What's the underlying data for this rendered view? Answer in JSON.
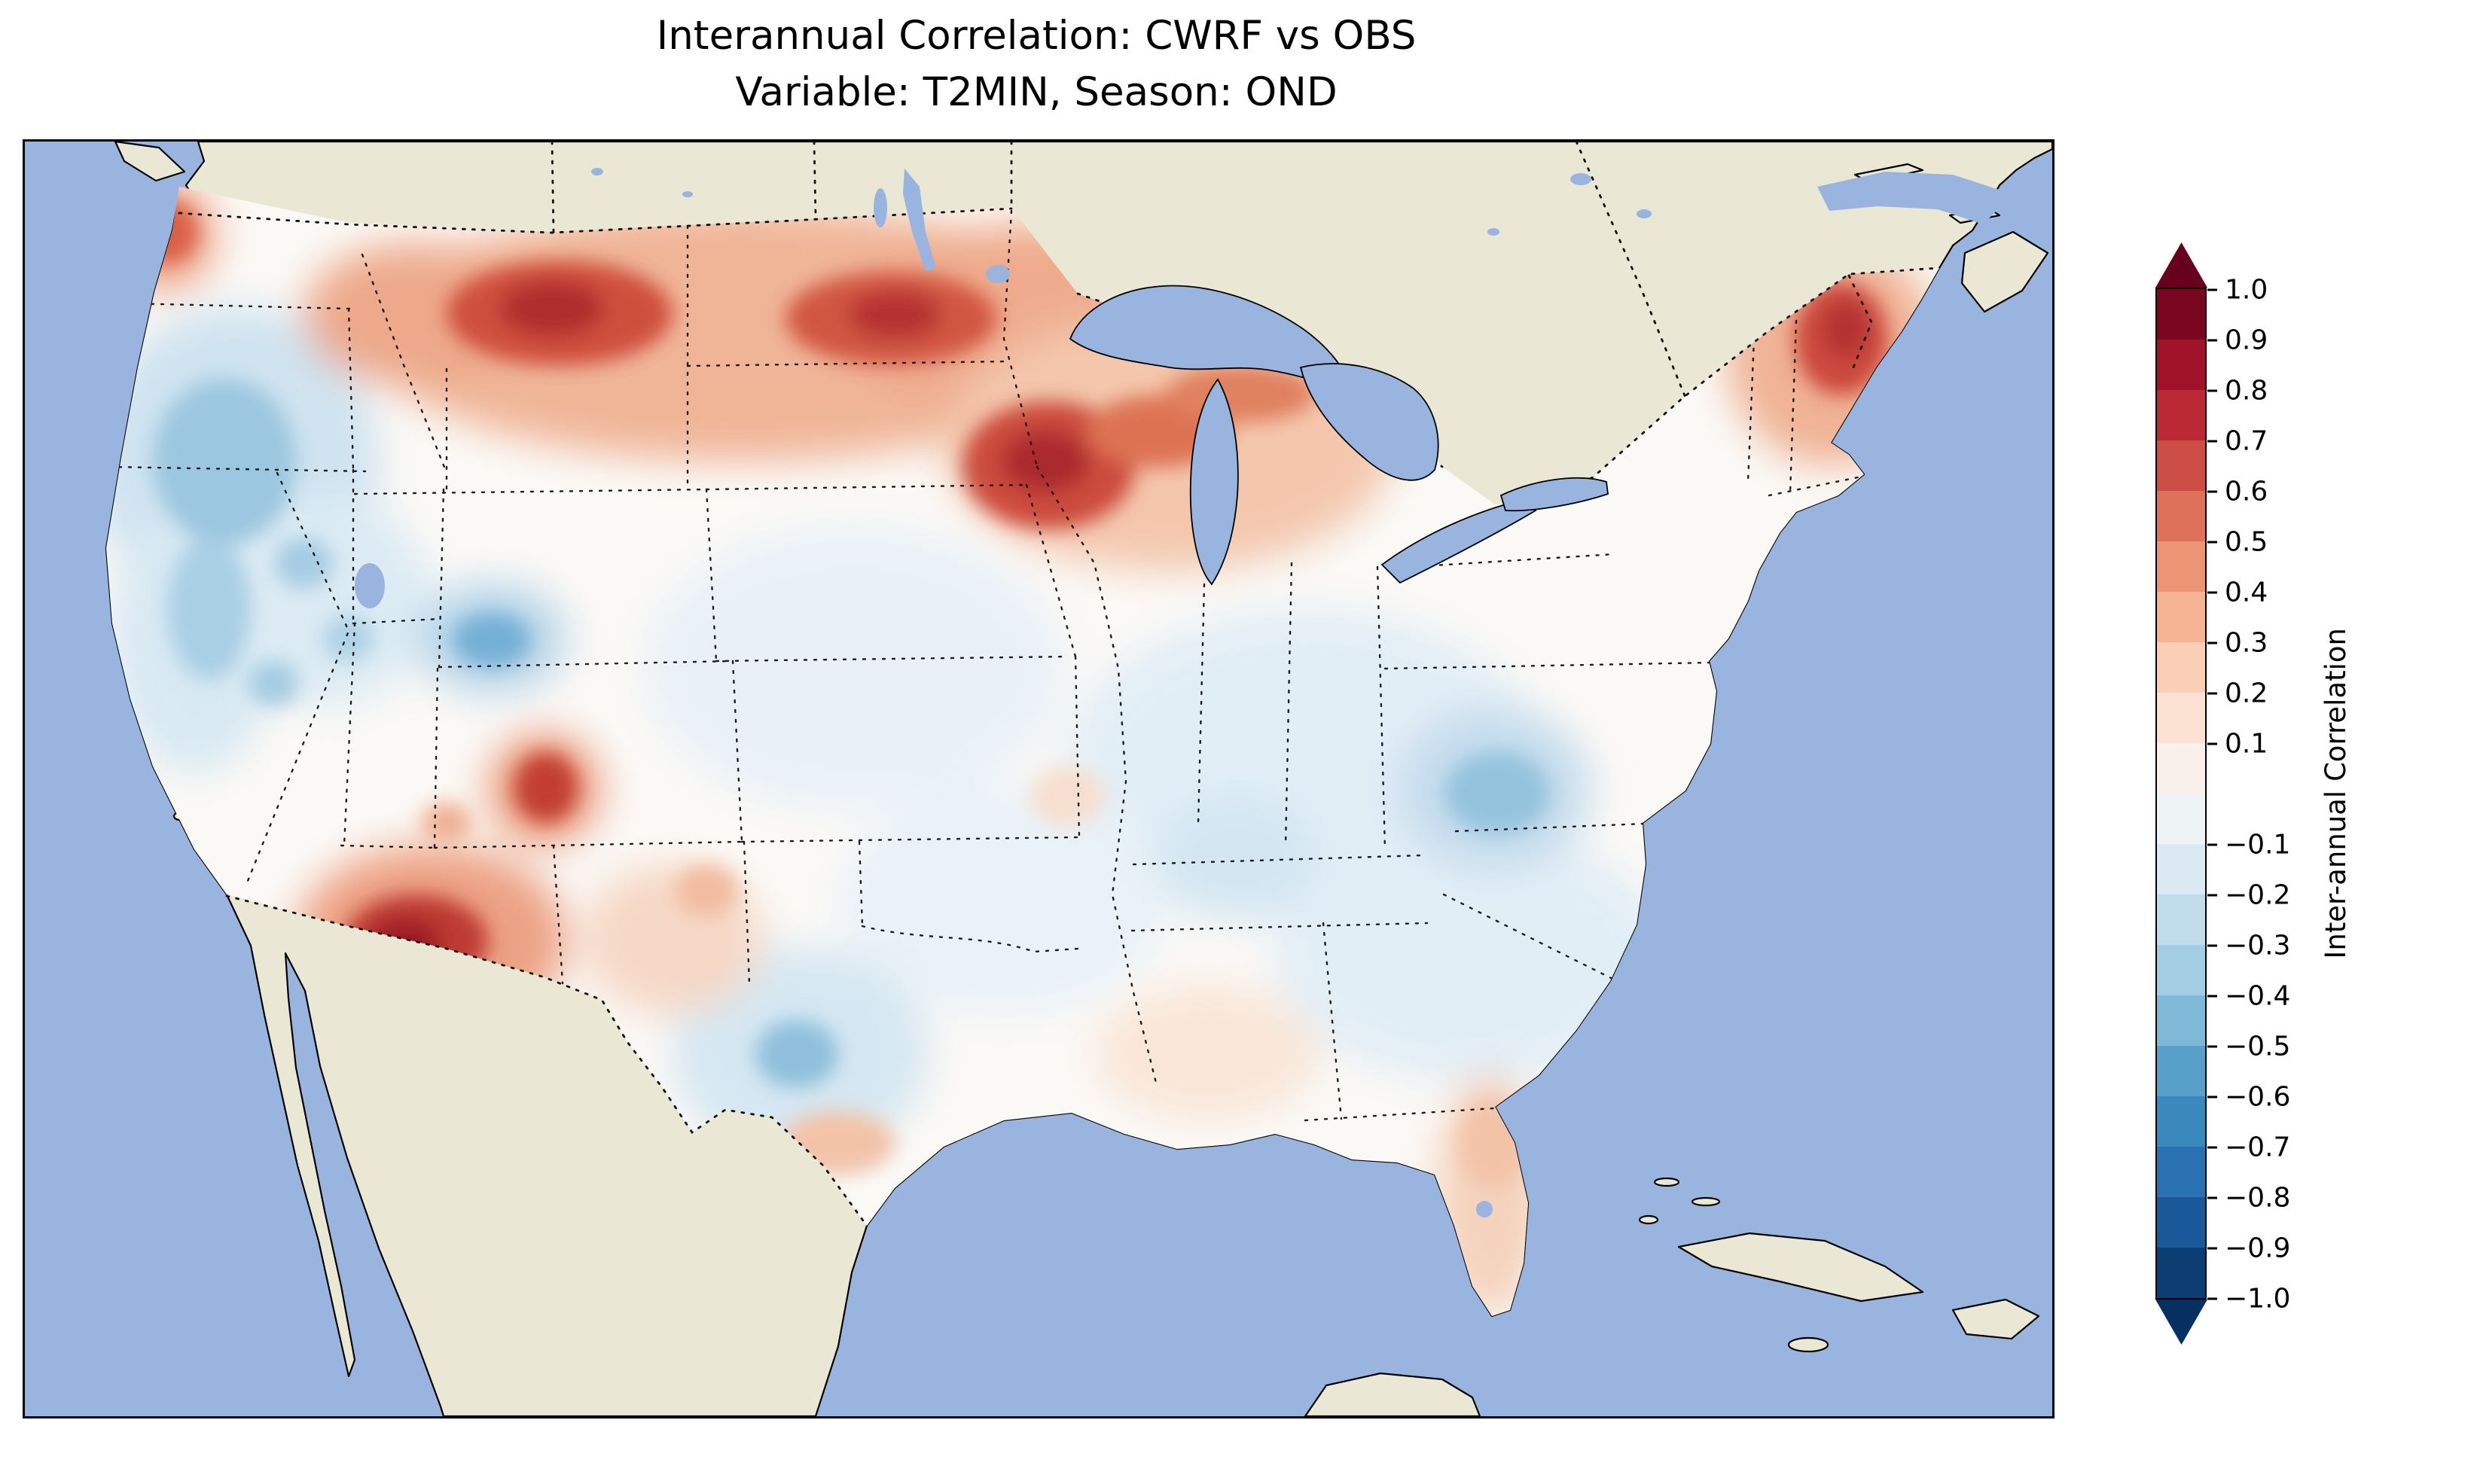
{
  "figure": {
    "title_line1": "Interannual Correlation: CWRF vs OBS",
    "title_line2": "Variable: T2MIN, Season: OND"
  },
  "map": {
    "ocean_color": "#98b4df",
    "land_color": "#eae8d4",
    "field_neutral_color": "#fbf9f6",
    "coastline_color": "#000000",
    "border_style": "dotted"
  },
  "colorbar": {
    "label": "Inter-annual Correlation",
    "extend_top_color": "#67001f",
    "extend_bottom_color": "#053061",
    "segment_colors_top_to_bottom": [
      "#7a0622",
      "#9f1228",
      "#bb2a34",
      "#cd4e45",
      "#de715a",
      "#ed9475",
      "#f6b393",
      "#fbceb6",
      "#fce2d3",
      "#f9f0eb",
      "#eef3f5",
      "#dbeaf2",
      "#c1ddec",
      "#a2cde3",
      "#7eb9d7",
      "#57a0ca",
      "#3b88bd",
      "#2a71b2",
      "#1a5999",
      "#0c3e74"
    ],
    "ticks": [
      {
        "value": 1.0,
        "label": "1.0"
      },
      {
        "value": 0.9,
        "label": "0.9"
      },
      {
        "value": 0.8,
        "label": "0.8"
      },
      {
        "value": 0.7,
        "label": "0.7"
      },
      {
        "value": 0.6,
        "label": "0.6"
      },
      {
        "value": 0.5,
        "label": "0.5"
      },
      {
        "value": 0.4,
        "label": "0.4"
      },
      {
        "value": 0.3,
        "label": "0.3"
      },
      {
        "value": 0.2,
        "label": "0.2"
      },
      {
        "value": 0.1,
        "label": "0.1"
      },
      {
        "value": -0.1,
        "label": "−0.1"
      },
      {
        "value": -0.2,
        "label": "−0.2"
      },
      {
        "value": -0.3,
        "label": "−0.3"
      },
      {
        "value": -0.4,
        "label": "−0.4"
      },
      {
        "value": -0.5,
        "label": "−0.5"
      },
      {
        "value": -0.6,
        "label": "−0.6"
      },
      {
        "value": -0.7,
        "label": "−0.7"
      },
      {
        "value": -0.8,
        "label": "−0.8"
      },
      {
        "value": -0.9,
        "label": "−0.9"
      },
      {
        "value": -1.0,
        "label": "−1.0"
      }
    ]
  },
  "chart_data": {
    "type": "heatmap",
    "subtype": "filled-contour geographic map",
    "title": "Interannual Correlation: CWRF vs OBS",
    "subtitle": "Variable: T2MIN, Season: OND",
    "comparison": "CWRF vs OBS",
    "variable": "T2MIN",
    "season": "OND",
    "region": "Continental United States (CONUS) with surrounding Canada, Mexico, Atlantic, Pacific and Gulf of Mexico",
    "colormap": "RdBu_r (red = positive, blue = negative)",
    "value_range": [
      -1.0,
      1.0
    ],
    "contour_interval": 0.1,
    "colorbar_label": "Inter-annual Correlation",
    "colorbar_ticks": [
      1.0,
      0.9,
      0.8,
      0.7,
      0.6,
      0.5,
      0.4,
      0.3,
      0.2,
      0.1,
      -0.1,
      -0.2,
      -0.3,
      -0.4,
      -0.5,
      -0.6,
      -0.7,
      -0.8,
      -0.9,
      -1.0
    ],
    "colorbar_extends_both_ends": true,
    "regional_values": [
      {
        "region": "Northern Montana / North Dakota band",
        "correlation": 0.6
      },
      {
        "region": "Northern Minnesota / Wisconsin (west of Lake Superior)",
        "correlation": 0.65
      },
      {
        "region": "Upper Michigan / Great Lakes shores",
        "correlation": 0.4
      },
      {
        "region": "Maine / New England",
        "correlation": 0.6
      },
      {
        "region": "Arizona (south-central)",
        "correlation": 0.65
      },
      {
        "region": "Western Colorado red spot",
        "correlation": 0.55
      },
      {
        "region": "Washington coast",
        "correlation": 0.45
      },
      {
        "region": "Florida peninsula",
        "correlation": 0.3
      },
      {
        "region": "Gulf coast Mississippi/Alabama",
        "correlation": 0.15
      },
      {
        "region": "Pacific Northwest interior / Northern California",
        "correlation": -0.4
      },
      {
        "region": "Nevada / Great Basin",
        "correlation": -0.25
      },
      {
        "region": "Southwest Wyoming / Northwest Colorado",
        "correlation": -0.55
      },
      {
        "region": "Central Texas",
        "correlation": -0.45
      },
      {
        "region": "Appalachians (WV/VA)",
        "correlation": -0.4
      },
      {
        "region": "Ohio Valley / Midwest",
        "correlation": -0.2
      },
      {
        "region": "Southeast (GA/SC/NC)",
        "correlation": -0.2
      },
      {
        "region": "Tennessee / Kentucky",
        "correlation": -0.25
      },
      {
        "region": "Central Plains (NE/KS/MO)",
        "correlation": 0.0
      }
    ]
  }
}
